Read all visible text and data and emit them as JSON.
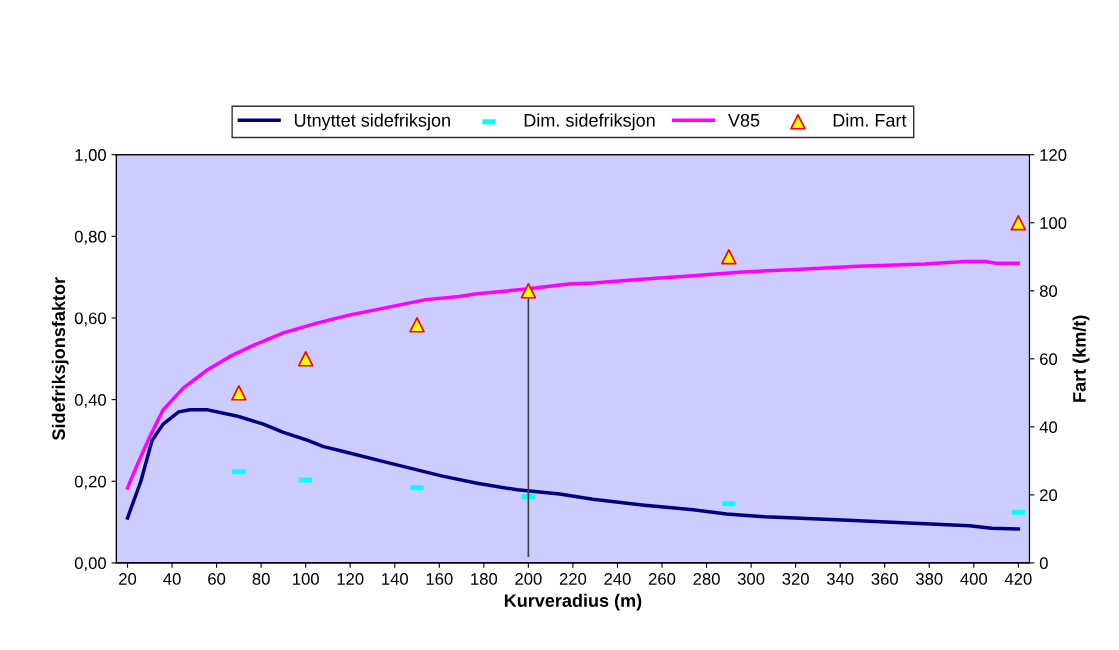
{
  "chart_data": {
    "type": "line",
    "xlabel": "Kurveradius (m)",
    "ylabel": "Sidefriksjonsfaktor",
    "y2label": "Fart (km/t)",
    "xlim": [
      15,
      425
    ],
    "xticks": [
      20,
      40,
      60,
      80,
      100,
      120,
      140,
      160,
      180,
      200,
      220,
      240,
      260,
      280,
      300,
      320,
      340,
      360,
      380,
      400,
      420
    ],
    "ylim": [
      0,
      1
    ],
    "yticks": [
      {
        "value": 0,
        "label": "0,00"
      },
      {
        "value": 0.2,
        "label": "0,20"
      },
      {
        "value": 0.4,
        "label": "0,40"
      },
      {
        "value": 0.6,
        "label": "0,60"
      },
      {
        "value": 0.8,
        "label": "0,80"
      },
      {
        "value": 1,
        "label": "1,00"
      }
    ],
    "y2lim": [
      0,
      120
    ],
    "y2ticks": [
      0,
      20,
      40,
      60,
      80,
      100,
      120
    ],
    "grid": false,
    "legend": "top",
    "series": [
      {
        "name": "Utnyttet sidefriksjon",
        "color": "#000080",
        "marker": "none",
        "x": [
          20,
          26,
          31,
          36,
          43,
          48,
          56,
          69,
          81,
          90,
          101,
          108,
          117,
          135,
          150,
          162,
          177,
          195,
          214,
          229,
          251,
          274,
          289,
          306,
          341,
          378,
          398,
          408,
          420
        ],
        "values": [
          0.11,
          0.2,
          0.3,
          0.34,
          0.37,
          0.375,
          0.375,
          0.36,
          0.34,
          0.32,
          0.3,
          0.285,
          0.273,
          0.248,
          0.228,
          0.212,
          0.195,
          0.179,
          0.169,
          0.156,
          0.142,
          0.13,
          0.12,
          0.113,
          0.105,
          0.096,
          0.091,
          0.085,
          0.083
        ]
      },
      {
        "name": "Dim. sidefriksjon",
        "type": "scatter",
        "color": "#00ffff",
        "x": [
          70,
          100,
          150,
          200,
          290,
          420
        ],
        "values": [
          0.223,
          0.203,
          0.184,
          0.162,
          0.145,
          0.124
        ]
      },
      {
        "name": "V85",
        "color": "#ff00ff",
        "marker": "none",
        "axis": "y2",
        "x": [
          20,
          24,
          30,
          36,
          45,
          56,
          66,
          77,
          90,
          105,
          120,
          139,
          154,
          169,
          177,
          199,
          218,
          229,
          251,
          274,
          296,
          318,
          348,
          378,
          396,
          405,
          410,
          420
        ],
        "values": [
          22,
          28.3,
          37.1,
          45,
          51.4,
          56.8,
          60.7,
          64.1,
          67.6,
          70.5,
          72.9,
          75.4,
          77.4,
          78.3,
          79.1,
          80.5,
          82,
          82.3,
          83.4,
          84.4,
          85.5,
          86.2,
          87.2,
          87.9,
          88.6,
          88.6,
          88.1,
          88.1
        ]
      },
      {
        "name": "Dim. Fart",
        "type": "scatter",
        "color": "#ffff00",
        "marker": "triangle",
        "axis": "y2",
        "x": [
          70,
          100,
          150,
          200,
          290,
          420
        ],
        "values": [
          50,
          60,
          70,
          80,
          90,
          100
        ]
      },
      {
        "color": "#404040",
        "marker": "none",
        "axis": "y2",
        "x": [
          200,
          200
        ],
        "values": [
          2,
          80
        ]
      }
    ]
  }
}
